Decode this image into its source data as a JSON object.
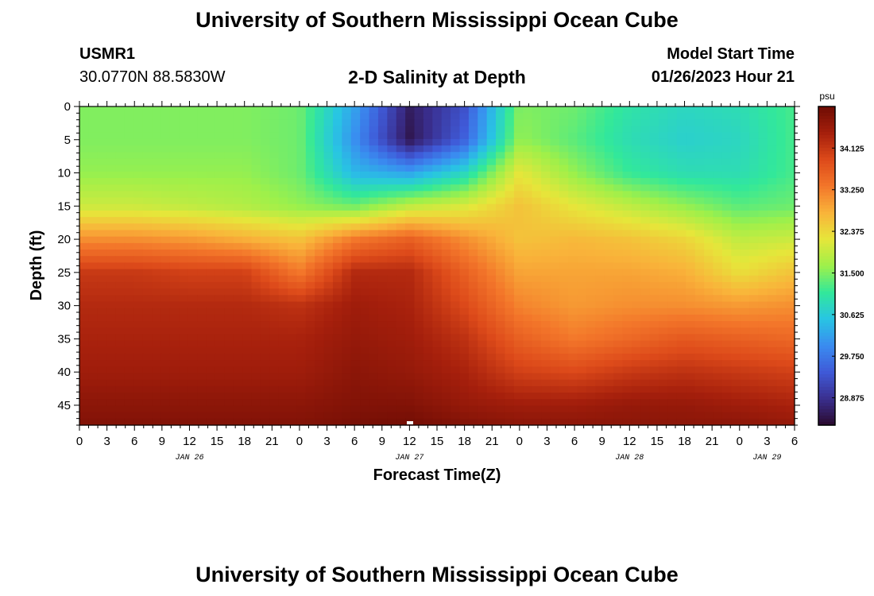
{
  "header": {
    "title": "University of Southern Mississippi Ocean Cube",
    "station": "USMR1",
    "coords": "30.0770N  88.5830W",
    "subtitle": "2-D Salinity at Depth",
    "model_label": "Model Start Time",
    "model_time": "01/26/2023 Hour 21"
  },
  "footer": {
    "title": "University of Southern Mississippi Ocean Cube"
  },
  "colors": {
    "ramp": [
      "#2a0a2e",
      "#3a2f8f",
      "#3f5ad8",
      "#3a8cf0",
      "#28c5e3",
      "#32e89a",
      "#9ef04a",
      "#e6e63a",
      "#f9b33a",
      "#f3762a",
      "#dd4a1a",
      "#a51f0c",
      "#6e0c04"
    ]
  },
  "chart_data": {
    "type": "heatmap",
    "title": "2-D Salinity at Depth",
    "xlabel": "Forecast Time(Z)",
    "ylabel": "Depth (ft)",
    "x_range_hours": [
      0,
      78
    ],
    "x_ticks": [
      "0",
      "3",
      "6",
      "9",
      "12",
      "15",
      "18",
      "21",
      "0",
      "3",
      "6",
      "9",
      "12",
      "15",
      "18",
      "21",
      "0",
      "3",
      "6",
      "9",
      "12",
      "15",
      "18",
      "21",
      "0",
      "3",
      "6"
    ],
    "date_labels": [
      {
        "text": "JAN 26",
        "hour": 12
      },
      {
        "text": "JAN 27",
        "hour": 36
      },
      {
        "text": "JAN 28",
        "hour": 60
      },
      {
        "text": "JAN 29",
        "hour": 75
      }
    ],
    "y_range_ft": [
      0,
      48
    ],
    "y_ticks": [
      "0",
      "5",
      "10",
      "15",
      "20",
      "25",
      "30",
      "35",
      "40",
      "45"
    ],
    "colorbar": {
      "unit": "psu",
      "range": [
        28.3,
        35.0
      ],
      "ticks": [
        "34.125",
        "33.250",
        "32.375",
        "31.500",
        "30.625",
        "29.750",
        "28.875"
      ]
    },
    "grid_hours": [
      0,
      6,
      12,
      18,
      24,
      30,
      36,
      42,
      48,
      54,
      60,
      66,
      72,
      78
    ],
    "grid_depths_ft": [
      0,
      5,
      10,
      15,
      20,
      25,
      30,
      35,
      40,
      45,
      48
    ],
    "values": [
      [
        31.5,
        31.5,
        31.5,
        31.5,
        31.4,
        30.2,
        28.6,
        29.3,
        31.5,
        31.4,
        31.0,
        30.8,
        30.9,
        31.2
      ],
      [
        31.5,
        31.5,
        31.5,
        31.5,
        31.4,
        30.0,
        28.5,
        29.5,
        31.6,
        31.3,
        30.9,
        30.7,
        30.8,
        31.2
      ],
      [
        31.6,
        31.6,
        31.6,
        31.6,
        31.4,
        30.4,
        30.2,
        30.8,
        32.2,
        31.6,
        31.1,
        30.9,
        30.9,
        31.2
      ],
      [
        32.0,
        32.0,
        31.9,
        31.8,
        31.6,
        31.4,
        31.9,
        32.1,
        32.6,
        32.2,
        31.9,
        31.6,
        31.3,
        31.4
      ],
      [
        33.1,
        33.1,
        33.0,
        32.8,
        32.6,
        33.3,
        33.6,
        33.1,
        32.6,
        32.7,
        32.6,
        32.4,
        31.9,
        32.0
      ],
      [
        34.1,
        34.1,
        34.0,
        34.0,
        33.3,
        34.3,
        34.3,
        33.6,
        32.9,
        32.9,
        32.9,
        32.8,
        32.3,
        32.6
      ],
      [
        34.3,
        34.3,
        34.3,
        34.3,
        34.2,
        34.5,
        34.4,
        33.9,
        33.2,
        33.0,
        33.1,
        33.1,
        33.0,
        33.1
      ],
      [
        34.4,
        34.4,
        34.4,
        34.4,
        34.4,
        34.6,
        34.5,
        34.2,
        33.6,
        33.3,
        33.5,
        33.7,
        33.6,
        33.5
      ],
      [
        34.5,
        34.5,
        34.5,
        34.5,
        34.5,
        34.7,
        34.6,
        34.4,
        34.0,
        33.9,
        34.1,
        34.2,
        34.1,
        34.0
      ],
      [
        34.7,
        34.7,
        34.7,
        34.7,
        34.7,
        34.8,
        34.8,
        34.6,
        34.5,
        34.5,
        34.6,
        34.6,
        34.5,
        34.4
      ],
      [
        34.8,
        34.8,
        34.8,
        34.8,
        34.8,
        34.9,
        34.95,
        34.8,
        34.7,
        34.7,
        34.7,
        34.7,
        34.7,
        34.6
      ]
    ]
  }
}
